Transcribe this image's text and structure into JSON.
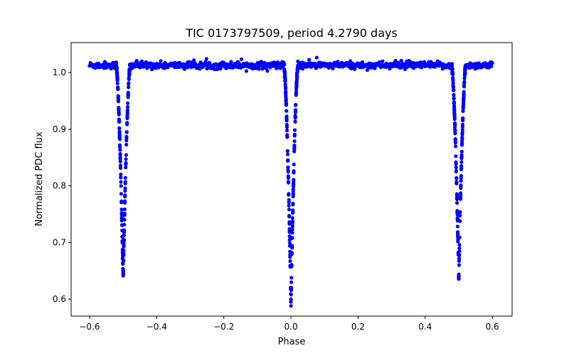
{
  "chart_data": {
    "type": "scatter",
    "title": "TIC 0173797509, period 4.2790 days",
    "xlabel": "Phase",
    "ylabel": "Normalized PDC flux",
    "xlim": [
      -0.655,
      0.659
    ],
    "ylim": [
      0.57,
      1.053
    ],
    "xticks": [
      -0.6,
      -0.4,
      -0.2,
      0.0,
      0.2,
      0.4,
      0.6
    ],
    "xtick_labels": [
      "−0.6",
      "−0.4",
      "−0.2",
      "0.0",
      "0.2",
      "0.4",
      "0.6"
    ],
    "yticks": [
      0.6,
      0.7,
      0.8,
      0.9,
      1.0
    ],
    "ytick_labels": [
      "0.6",
      "0.7",
      "0.8",
      "0.9",
      "1.0"
    ],
    "grid": false,
    "marker_color": "#0000ff",
    "series": [
      {
        "name": "flux",
        "phase_range": [
          -0.6,
          0.6
        ],
        "baseline_flux": 1.013,
        "scatter": 0.003,
        "eclipses": [
          {
            "phase": -0.5,
            "min_flux": 0.638,
            "half_width": 0.021
          },
          {
            "phase": 0.0,
            "min_flux": 0.594,
            "half_width": 0.021
          },
          {
            "phase": 0.5,
            "min_flux": 0.638,
            "half_width": 0.021
          }
        ],
        "sample_points": [
          [
            -0.6,
            1.013
          ],
          [
            -0.52,
            1.013
          ],
          [
            -0.51,
            0.85
          ],
          [
            -0.5,
            0.638
          ],
          [
            -0.49,
            0.85
          ],
          [
            -0.48,
            1.013
          ],
          [
            -0.4,
            1.014
          ],
          [
            -0.2,
            1.014
          ],
          [
            -0.02,
            1.013
          ],
          [
            -0.01,
            0.85
          ],
          [
            0.0,
            0.594
          ],
          [
            0.01,
            0.85
          ],
          [
            0.02,
            1.013
          ],
          [
            0.2,
            1.014
          ],
          [
            0.4,
            1.014
          ],
          [
            0.48,
            1.013
          ],
          [
            0.49,
            0.85
          ],
          [
            0.5,
            0.638
          ],
          [
            0.51,
            0.85
          ],
          [
            0.52,
            1.013
          ],
          [
            0.6,
            1.013
          ]
        ]
      }
    ]
  }
}
